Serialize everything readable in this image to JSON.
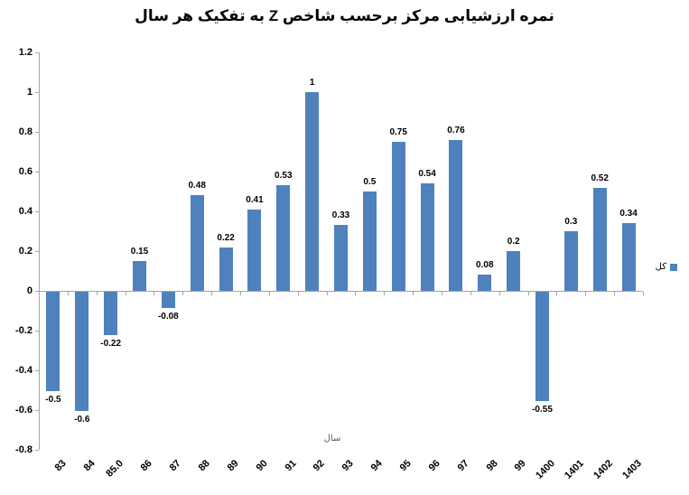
{
  "title": "نمره ارزشیابی مرکز برحسب شاخص Z به تفکیک هر سال",
  "x_axis_title": "سال",
  "legend": {
    "label": "کل"
  },
  "colors": {
    "bar": "#4F81BD",
    "axis": "#A6A6A6",
    "title_text": "#000000",
    "axis_title_text": "#595959"
  },
  "chart_data": {
    "type": "bar",
    "title": "نمره ارزشیابی مرکز برحسب شاخص Z به تفکیک هر سال",
    "xlabel": "سال",
    "ylabel": "",
    "categories": [
      "83",
      "84",
      "85.0",
      "86",
      "87",
      "88",
      "89",
      "90",
      "91",
      "92",
      "93",
      "94",
      "95",
      "96",
      "97",
      "98",
      "99",
      "1400",
      "1401",
      "1402",
      "1403"
    ],
    "values": [
      -0.5,
      -0.6,
      -0.22,
      0.15,
      -0.08,
      0.48,
      0.22,
      0.41,
      0.53,
      1,
      0.33,
      0.5,
      0.75,
      0.54,
      0.76,
      0.08,
      0.2,
      -0.55,
      0.3,
      0.52,
      0.34
    ],
    "value_labels": [
      "-0.5",
      "-0.6",
      "-0.22",
      "0.15",
      "-0.08",
      "0.48",
      "0.22",
      "0.41",
      "0.53",
      "1",
      "0.33",
      "0.5",
      "0.75",
      "0.54",
      "0.76",
      "0.08",
      "0.2",
      "-0.55",
      "0.3",
      "0.52",
      "0.34"
    ],
    "ylim": [
      -0.8,
      1.2
    ],
    "ytick_step": 0.2,
    "ytick_labels": [
      "1.2",
      "1",
      "0.8",
      "0.6",
      "0.4",
      "0.2",
      "0",
      "-0.2",
      "-0.4",
      "-0.6",
      "-0.8"
    ],
    "legend_entries": [
      "کل"
    ],
    "legend_position": "right",
    "grid": false
  }
}
